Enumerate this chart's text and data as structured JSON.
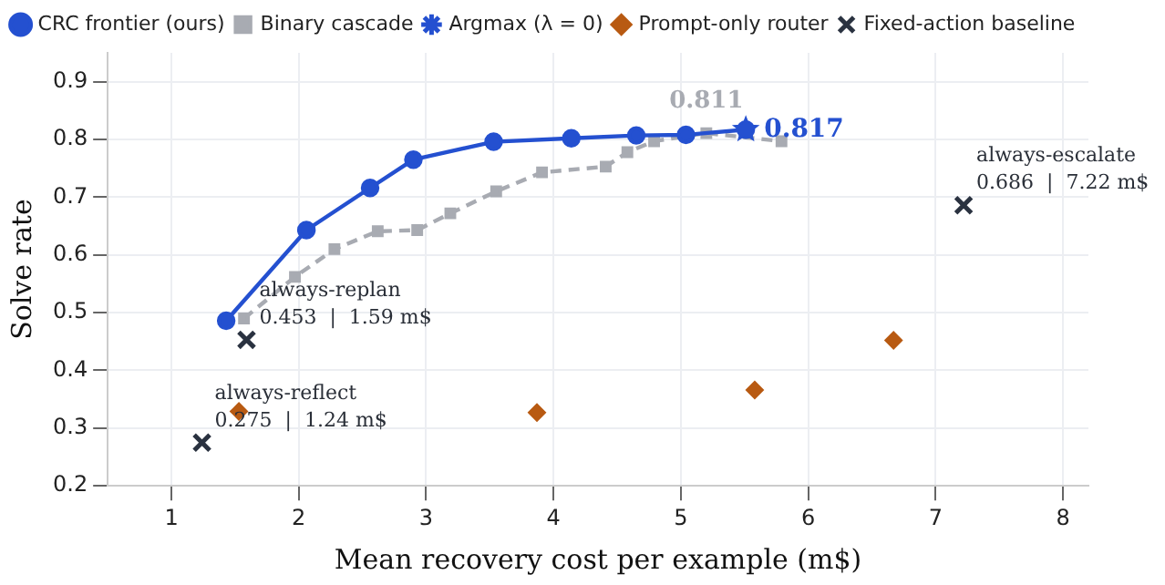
{
  "chart_data": {
    "type": "line",
    "xlabel": "Mean recovery cost per example (m$)",
    "ylabel": "Solve rate",
    "xlim": [
      0.5,
      8.2
    ],
    "xticks": [
      1,
      2,
      3,
      4,
      5,
      6,
      7,
      8
    ],
    "ylim": [
      0.2,
      0.95
    ],
    "yticks": [
      0.2,
      0.3,
      0.4,
      0.5,
      0.6,
      0.7,
      0.8,
      0.9
    ],
    "grid": true,
    "legend": "top",
    "series": [
      {
        "name": "CRC frontier (ours)",
        "type": "line",
        "color": "#2450d0",
        "marker": "circle",
        "line_style": "solid",
        "x": [
          1.43,
          2.06,
          2.56,
          2.9,
          3.53,
          4.14,
          4.65,
          5.04,
          5.51
        ],
        "values": [
          0.486,
          0.643,
          0.716,
          0.765,
          0.796,
          0.802,
          0.807,
          0.808,
          0.817
        ]
      },
      {
        "name": "Binary cascade",
        "type": "line",
        "color": "#a8abb2",
        "marker": "square",
        "line_style": "dashed",
        "x": [
          1.57,
          1.97,
          2.28,
          2.62,
          2.93,
          3.19,
          3.55,
          3.91,
          4.41,
          4.58,
          4.79,
          5.2,
          5.79
        ],
        "values": [
          0.49,
          0.562,
          0.61,
          0.641,
          0.643,
          0.672,
          0.71,
          0.743,
          0.753,
          0.778,
          0.797,
          0.811,
          0.797
        ]
      },
      {
        "name": "Argmax (λ = 0)",
        "type": "scatter",
        "color": "#2450d0",
        "marker": "star",
        "x": [
          5.51
        ],
        "values": [
          0.817
        ]
      },
      {
        "name": "Prompt-only router",
        "type": "scatter",
        "color": "#b85a12",
        "marker": "diamond",
        "x": [
          1.53,
          3.87,
          5.58,
          6.67
        ],
        "values": [
          0.329,
          0.327,
          0.366,
          0.452
        ]
      },
      {
        "name": "Fixed-action baseline",
        "type": "scatter",
        "color": "#2a3240",
        "marker": "cross",
        "x": [
          1.59,
          1.24,
          7.22
        ],
        "values": [
          0.453,
          0.275,
          0.686
        ]
      }
    ],
    "annotations": [
      {
        "text": "0.811",
        "x": 5.2,
        "y": 0.811
      },
      {
        "text": "0.817",
        "x": 5.51,
        "y": 0.817
      },
      {
        "text": "always-replan\n0.453  |  1.59 m$",
        "x": 1.59,
        "y": 0.453
      },
      {
        "text": "always-reflect\n0.275  |  1.24 m$",
        "x": 1.24,
        "y": 0.275
      },
      {
        "text": "always-escalate\n0.686  |  7.22 m$",
        "x": 7.22,
        "y": 0.686
      }
    ]
  }
}
